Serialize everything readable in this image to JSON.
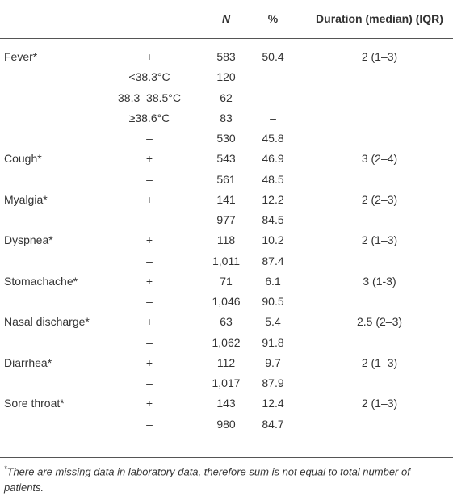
{
  "table": {
    "header": {
      "n": "N",
      "pct": "%",
      "duration": "Duration (median) (IQR)"
    },
    "rows": [
      {
        "label": "Fever*",
        "sign": "+",
        "n": "583",
        "pct": "50.4",
        "duration": "2 (1–3)"
      },
      {
        "sublabel": "<38.3°C",
        "n": "120",
        "pct": "–"
      },
      {
        "sublabel": "38.3–38.5°C",
        "n": "62",
        "pct": "–"
      },
      {
        "sublabel": "≥38.6°C",
        "n": "83",
        "pct": "–"
      },
      {
        "sign": "–",
        "n": "530",
        "pct": "45.8"
      },
      {
        "label": "Cough*",
        "sign": "+",
        "n": "543",
        "pct": "46.9",
        "duration": "3 (2–4)"
      },
      {
        "sign": "–",
        "n": "561",
        "pct": "48.5"
      },
      {
        "label": "Myalgia*",
        "sign": "+",
        "n": "141",
        "pct": "12.2",
        "duration": "2 (2–3)"
      },
      {
        "sign": "–",
        "n": "977",
        "pct": "84.5"
      },
      {
        "label": "Dyspnea*",
        "sign": "+",
        "n": "118",
        "pct": "10.2",
        "duration": "2 (1–3)"
      },
      {
        "sign": "–",
        "n": "1,011",
        "pct": "87.4"
      },
      {
        "label": "Stomachache*",
        "sign": "+",
        "n": "71",
        "pct": "6.1",
        "duration": "3 (1-3)"
      },
      {
        "sign": "–",
        "n": "1,046",
        "pct": "90.5"
      },
      {
        "label": "Nasal discharge*",
        "sign": "+",
        "n": "63",
        "pct": "5.4",
        "duration": "2.5 (2–3)"
      },
      {
        "sign": "–",
        "n": "1,062",
        "pct": "91.8"
      },
      {
        "label": "Diarrhea*",
        "sign": "+",
        "n": "112",
        "pct": "9.7",
        "duration": "2 (1–3)"
      },
      {
        "sign": "–",
        "n": "1,017",
        "pct": "87.9"
      },
      {
        "label": "Sore throat*",
        "sign": "+",
        "n": "143",
        "pct": "12.4",
        "duration": "2 (1–3)"
      },
      {
        "sign": "–",
        "n": "980",
        "pct": "84.7"
      }
    ]
  },
  "footnote": {
    "marker": "*",
    "text": "There are missing data in laboratory data, therefore sum is not equal to total number of patients."
  }
}
